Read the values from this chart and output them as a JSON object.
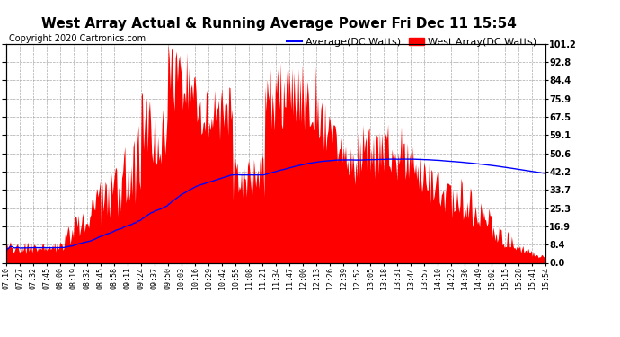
{
  "title": "West Array Actual & Running Average Power Fri Dec 11 15:54",
  "copyright": "Copyright 2020 Cartronics.com",
  "legend_avg": "Average(DC Watts)",
  "legend_west": "West Array(DC Watts)",
  "legend_avg_color": "blue",
  "legend_west_color": "red",
  "ylabel_right_ticks": [
    0.0,
    8.4,
    16.9,
    25.3,
    33.7,
    42.2,
    50.6,
    59.1,
    67.5,
    75.9,
    84.4,
    92.8,
    101.2
  ],
  "ymin": 0.0,
  "ymax": 101.2,
  "fill_color": "red",
  "avg_line_color": "blue",
  "background_color": "#ffffff",
  "grid_color": "#aaaaaa",
  "title_fontsize": 11,
  "copyright_fontsize": 7,
  "legend_fontsize": 8,
  "tick_label_fontsize": 6,
  "xtick_labels": [
    "07:10",
    "07:27",
    "07:32",
    "07:45",
    "08:00",
    "08:19",
    "08:32",
    "08:45",
    "08:58",
    "09:11",
    "09:24",
    "09:37",
    "09:50",
    "10:03",
    "10:16",
    "10:29",
    "10:42",
    "10:55",
    "11:08",
    "11:21",
    "11:34",
    "11:47",
    "12:00",
    "12:13",
    "12:26",
    "12:39",
    "12:52",
    "13:05",
    "13:18",
    "13:31",
    "13:44",
    "13:57",
    "14:10",
    "14:23",
    "14:36",
    "14:49",
    "15:02",
    "15:15",
    "15:28",
    "15:41",
    "15:54"
  ]
}
